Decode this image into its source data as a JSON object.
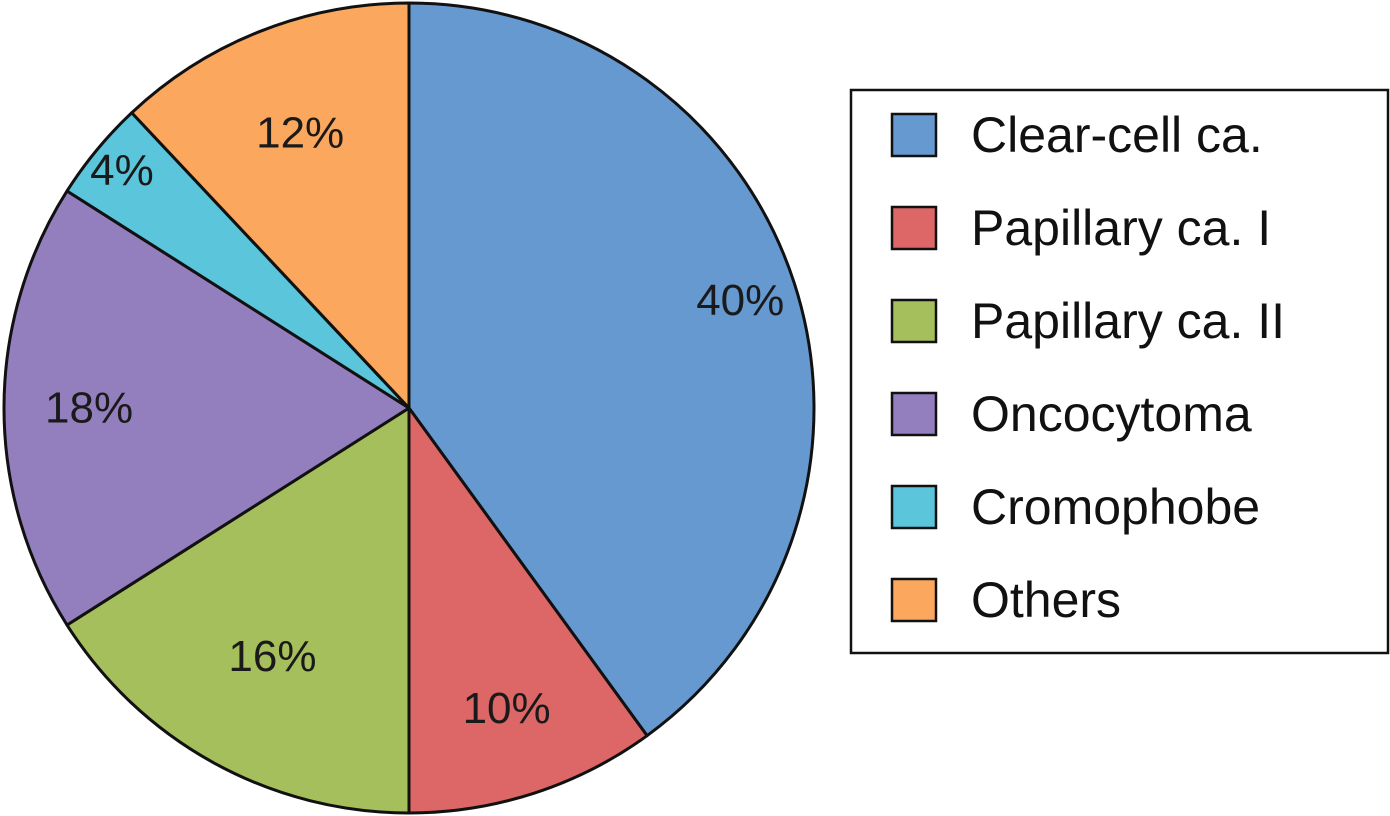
{
  "chart_data": {
    "type": "pie",
    "series": [
      {
        "name": "Clear-cell ca.",
        "value": 40,
        "label": "40%",
        "color": "#6699d0"
      },
      {
        "name": "Papillary ca. I",
        "value": 10,
        "label": "10%",
        "color": "#dd6666"
      },
      {
        "name": "Papillary ca. II",
        "value": 16,
        "label": "16%",
        "color": "#a4bf5b"
      },
      {
        "name": "Oncocytoma",
        "value": 18,
        "label": "18%",
        "color": "#937fbd"
      },
      {
        "name": "Cromophobe",
        "value": 4,
        "label": "4%",
        "color": "#5bc5dc"
      },
      {
        "name": "Others",
        "value": 12,
        "label": "12%",
        "color": "#fba75e"
      }
    ],
    "start_angle": "top (12 o'clock)",
    "direction": "clockwise",
    "legend_position": "right"
  }
}
